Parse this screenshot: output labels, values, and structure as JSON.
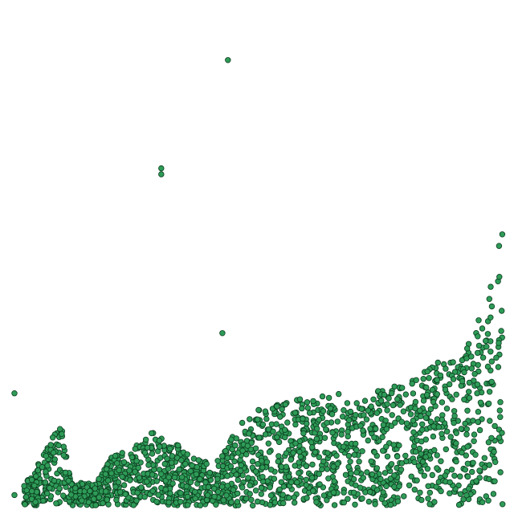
{
  "chart_data": {
    "type": "scatter",
    "title": "",
    "xlabel": "",
    "ylabel": "",
    "xlim": [
      0,
      1
    ],
    "ylim": [
      0,
      1
    ],
    "grid": false,
    "axes_visible": false,
    "marker_fill": "#2e9b57",
    "marker_edge": "#0b3d1f",
    "outliers": [
      {
        "x": 0.442,
        "y": 0.893
      },
      {
        "x": 0.309,
        "y": 0.677
      },
      {
        "x": 0.309,
        "y": 0.665
      },
      {
        "x": 0.431,
        "y": 0.348
      },
      {
        "x": 0.016,
        "y": 0.228
      },
      {
        "x": 0.016,
        "y": 0.025
      }
    ],
    "upper_envelope": [
      [
        0.04,
        0.05
      ],
      [
        0.07,
        0.1
      ],
      [
        0.09,
        0.14
      ],
      [
        0.11,
        0.16
      ],
      [
        0.13,
        0.05
      ],
      [
        0.18,
        0.05
      ],
      [
        0.21,
        0.1
      ],
      [
        0.25,
        0.12
      ],
      [
        0.29,
        0.15
      ],
      [
        0.33,
        0.14
      ],
      [
        0.36,
        0.11
      ],
      [
        0.4,
        0.09
      ],
      [
        0.43,
        0.11
      ],
      [
        0.47,
        0.17
      ],
      [
        0.51,
        0.2
      ],
      [
        0.55,
        0.22
      ],
      [
        0.6,
        0.22
      ],
      [
        0.65,
        0.23
      ],
      [
        0.7,
        0.22
      ],
      [
        0.76,
        0.24
      ],
      [
        0.82,
        0.26
      ],
      [
        0.86,
        0.29
      ],
      [
        0.9,
        0.31
      ],
      [
        0.93,
        0.35
      ],
      [
        0.95,
        0.4
      ],
      [
        0.97,
        0.45
      ],
      [
        0.98,
        0.48
      ],
      [
        0.975,
        0.55
      ],
      [
        0.985,
        0.57
      ]
    ],
    "dense_region_count": 1800,
    "seed": 7
  }
}
